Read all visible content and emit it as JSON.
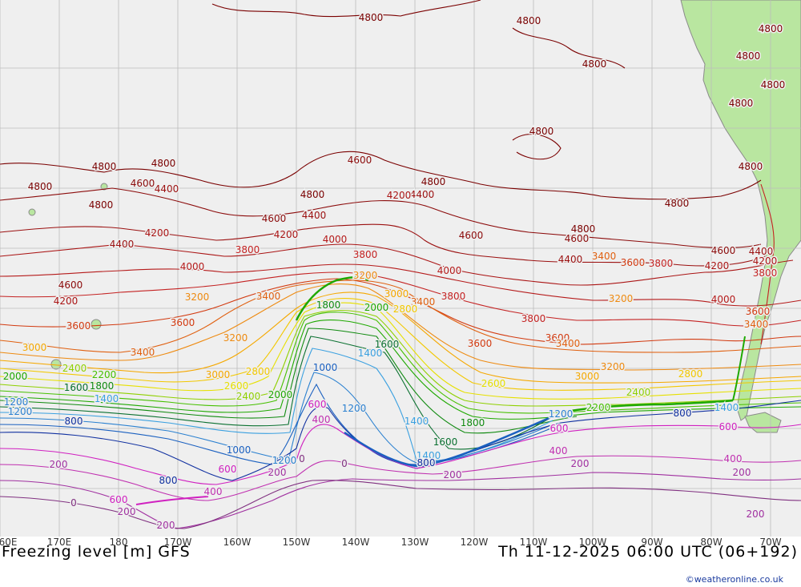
{
  "map": {
    "title": "Freezing level [m] GFS",
    "datetime": "Th 11-12-2025 06:00 UTC (06+192)",
    "credit": "©weatheronline.co.uk",
    "longitude_ticks": [
      "60E",
      "170E",
      "180",
      "170W",
      "160W",
      "150W",
      "140W",
      "130W",
      "120W",
      "110W",
      "100W",
      "90W",
      "80W",
      "70W"
    ],
    "land_color": "#b9e6a0",
    "ocean_color": "#efefef",
    "grid_color": "#bcbcbc"
  },
  "contour_labels": [
    {
      "text": "4800",
      "color": "#7a0000"
    },
    {
      "text": "4600",
      "color": "#8b0a0a"
    },
    {
      "text": "4400",
      "color": "#9b1010"
    },
    {
      "text": "4200",
      "color": "#aa1414"
    },
    {
      "text": "4000",
      "color": "#b51a1a"
    },
    {
      "text": "3800",
      "color": "#c42222"
    },
    {
      "text": "3600",
      "color": "#d23a10"
    },
    {
      "text": "3400",
      "color": "#e06010"
    },
    {
      "text": "3200",
      "color": "#ee8a10"
    },
    {
      "text": "3000",
      "color": "#f5a800"
    },
    {
      "text": "2800",
      "color": "#f2c800"
    },
    {
      "text": "2600",
      "color": "#e6e000"
    },
    {
      "text": "2400",
      "color": "#8fd000"
    },
    {
      "text": "2200",
      "color": "#46c000"
    },
    {
      "text": "2000",
      "color": "#1ea800"
    },
    {
      "text": "1800",
      "color": "#108a10"
    },
    {
      "text": "1600",
      "color": "#0a7030"
    },
    {
      "text": "1400",
      "color": "#3aa0e0"
    },
    {
      "text": "1200",
      "color": "#2a80d0"
    },
    {
      "text": "1000",
      "color": "#1a60c0"
    },
    {
      "text": "800",
      "color": "#1030a0"
    },
    {
      "text": "600",
      "color": "#d020c0"
    },
    {
      "text": "400",
      "color": "#c030b0"
    },
    {
      "text": "200",
      "color": "#a030a0"
    },
    {
      "text": "0",
      "color": "#803080"
    }
  ]
}
